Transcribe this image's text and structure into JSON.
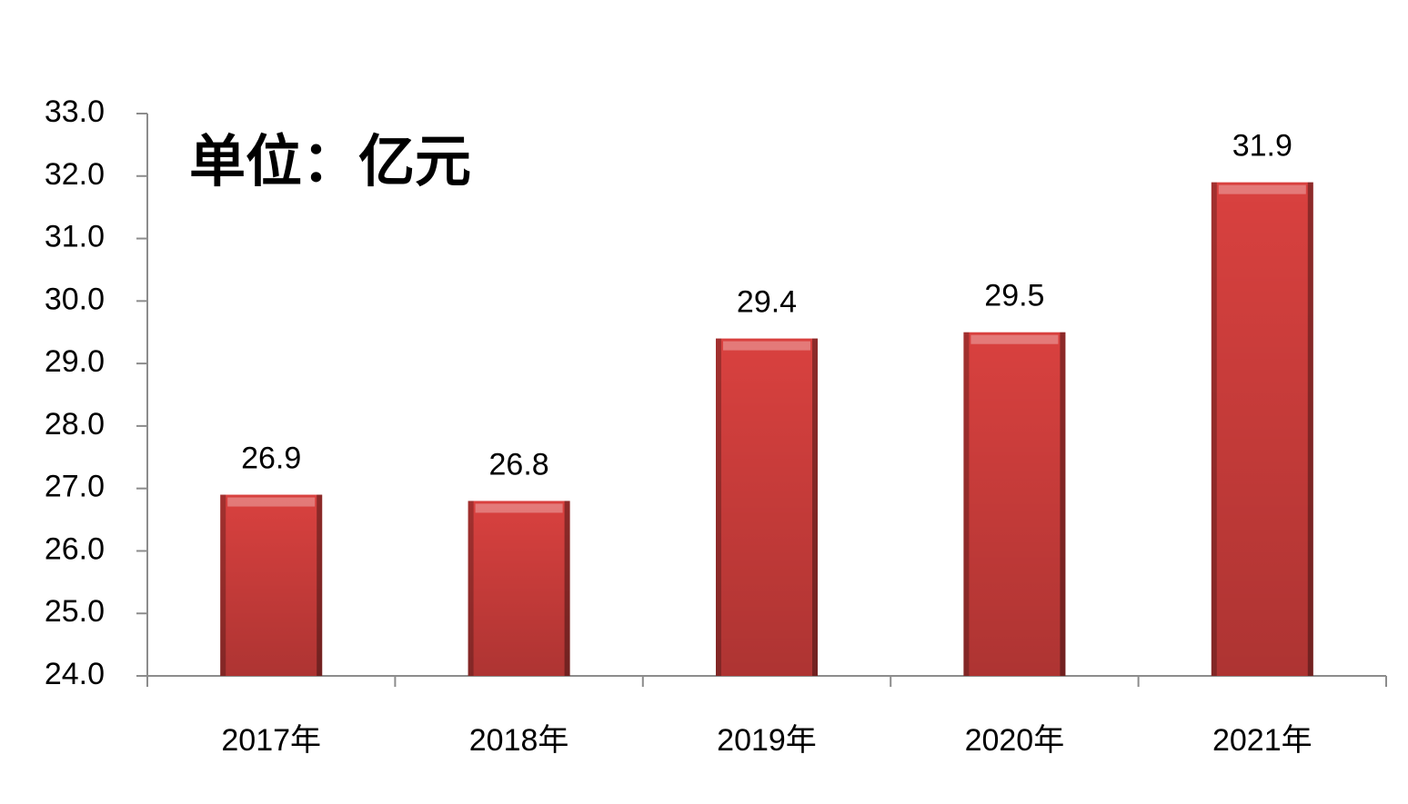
{
  "chart_data": {
    "type": "bar",
    "annotation": "单位：亿元",
    "categories": [
      "2017年",
      "2018年",
      "2019年",
      "2020年",
      "2021年"
    ],
    "values": [
      26.9,
      26.8,
      29.4,
      29.5,
      31.9
    ],
    "color": "#d9413f",
    "ylim": [
      24,
      33
    ],
    "yticks": [
      {
        "value": 24,
        "label": "24.0"
      },
      {
        "value": 25,
        "label": "25.0"
      },
      {
        "value": 26,
        "label": "26.0"
      },
      {
        "value": 27,
        "label": "27.0"
      },
      {
        "value": 28,
        "label": "28.0"
      },
      {
        "value": 29,
        "label": "29.0"
      },
      {
        "value": 30,
        "label": "30.0"
      },
      {
        "value": 31,
        "label": "31.0"
      },
      {
        "value": 32,
        "label": "32.0"
      },
      {
        "value": 33,
        "label": "33.0"
      }
    ],
    "grid": false
  }
}
